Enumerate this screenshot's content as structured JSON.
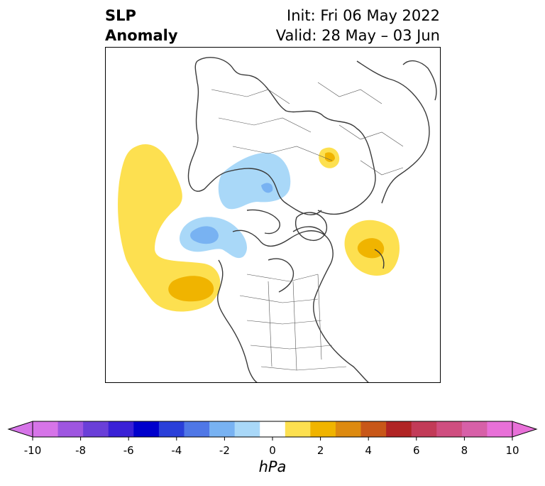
{
  "title": {
    "variable_line1": "SLP",
    "variable_line2": "Anomaly",
    "init": "Init: Fri 06 May 2022",
    "valid": "Valid: 28 May – 03 Jun"
  },
  "colorbar": {
    "unit": "hPa",
    "ticks": [
      "-10",
      "-8",
      "-6",
      "-4",
      "-2",
      "0",
      "2",
      "4",
      "6",
      "8",
      "10"
    ],
    "colors": [
      "#d674e8",
      "#9e56e0",
      "#6a3fd8",
      "#3a21d6",
      "#0000cc",
      "#2a3fd9",
      "#4f77e6",
      "#78b2f2",
      "#a9d8f8",
      "#ffffff",
      "#fde050",
      "#f0b400",
      "#dd8a10",
      "#c85718",
      "#b02424",
      "#c23b58",
      "#cf4e80",
      "#d760a8",
      "#e870d8"
    ],
    "min_extend_color": "#d674e8",
    "max_extend_color": "#e870d8"
  },
  "map": {
    "projection": "north-polar-stereographic",
    "coastline_color": "#3a3a3a"
  }
}
